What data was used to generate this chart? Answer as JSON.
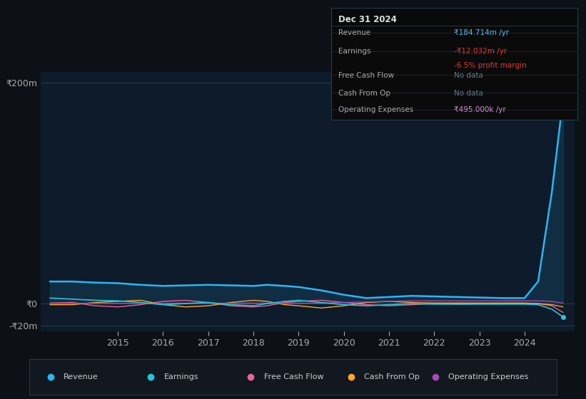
{
  "background_color": "#0d1117",
  "plot_bg_color": "#0d1b2a",
  "grid_color": "#2a3a4a",
  "title_box": {
    "date": "Dec 31 2024",
    "rows": [
      {
        "label": "Revenue",
        "value": "₹184.714m /yr",
        "value_color": "#4fc3f7",
        "sub": null,
        "sub_color": null
      },
      {
        "label": "Earnings",
        "value": "-₹12.032m /yr",
        "value_color": "#e53935",
        "sub": "-6.5% profit margin",
        "sub_color": "#e53935"
      },
      {
        "label": "Free Cash Flow",
        "value": "No data",
        "value_color": "#607d8b",
        "sub": null,
        "sub_color": null
      },
      {
        "label": "Cash From Op",
        "value": "No data",
        "value_color": "#607d8b",
        "sub": null,
        "sub_color": null
      },
      {
        "label": "Operating Expenses",
        "value": "₹495.000k /yr",
        "value_color": "#ce93d8",
        "sub": null,
        "sub_color": null
      }
    ],
    "bg": "#0a0a0a",
    "border_color": "#2a3a4a",
    "text_color": "#aaaaaa",
    "header_color": "#dddddd"
  },
  "ylim": [
    -25,
    210
  ],
  "y_ticks": [
    200,
    0,
    -20
  ],
  "y_tick_labels": [
    "₹200m",
    "₹0",
    "-₹20m"
  ],
  "x_years": [
    2013.5,
    2014,
    2014.5,
    2015,
    2015.5,
    2016,
    2016.5,
    2017,
    2017.5,
    2018,
    2018.3,
    2018.7,
    2019,
    2019.5,
    2020,
    2020.5,
    2021,
    2021.5,
    2022,
    2022.5,
    2023,
    2023.5,
    2024,
    2024.3,
    2024.6,
    2024.85
  ],
  "revenue": [
    20,
    20,
    19,
    18.5,
    17,
    16,
    16.5,
    17,
    16.5,
    16,
    17,
    16,
    15,
    12,
    8,
    5,
    6,
    7,
    6.5,
    6,
    5.5,
    5,
    5,
    20,
    100,
    184.714
  ],
  "earnings": [
    5,
    4,
    3,
    2.5,
    1,
    -1,
    0,
    1,
    -1,
    -2,
    0,
    2,
    3,
    1,
    -1,
    -2,
    -1,
    0,
    -0.5,
    -0.5,
    -0.5,
    -0.5,
    -0.5,
    -1,
    -5,
    -12.032
  ],
  "free_cash_flow": [
    0.5,
    1,
    -2,
    -3,
    -1,
    2,
    3,
    1,
    -2,
    -3,
    -2,
    1,
    2,
    3,
    1,
    -1,
    -2,
    -1,
    0,
    -0.5,
    -0.2,
    -0.2,
    0,
    0,
    -2,
    -8
  ],
  "cash_from_op": [
    -1,
    -1,
    1,
    2,
    3,
    -1,
    -3,
    -2,
    1,
    3,
    2,
    -1,
    -2,
    -4,
    -2,
    1,
    2,
    1,
    0.5,
    0.5,
    0.5,
    0.5,
    0.5,
    0,
    -1,
    -3
  ],
  "operating_expenses": [
    0.2,
    0.2,
    0.2,
    0.2,
    0.2,
    0.3,
    0.3,
    0.3,
    0.3,
    0.3,
    0.3,
    0.3,
    0.3,
    0.3,
    1,
    1.5,
    2,
    2.5,
    2.5,
    2.5,
    2.5,
    2.5,
    2.5,
    2.5,
    2,
    0.495
  ],
  "revenue_color": "#29b6f6",
  "earnings_color": "#26c6da",
  "free_cash_flow_color": "#f06292",
  "cash_from_op_color": "#ffa726",
  "operating_expenses_color": "#ab47bc",
  "legend_labels": [
    "Revenue",
    "Earnings",
    "Free Cash Flow",
    "Cash From Op",
    "Operating Expenses"
  ],
  "legend_colors": [
    "#29b6f6",
    "#26c6da",
    "#f06292",
    "#ffa726",
    "#ab47bc"
  ],
  "x_tick_labels": [
    "2015",
    "2016",
    "2017",
    "2018",
    "2019",
    "2020",
    "2021",
    "2022",
    "2023",
    "2024"
  ],
  "x_tick_positions": [
    2015,
    2016,
    2017,
    2018,
    2019,
    2020,
    2021,
    2022,
    2023,
    2024
  ]
}
